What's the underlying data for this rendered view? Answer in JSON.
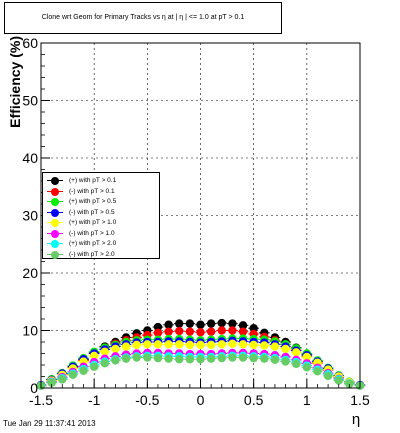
{
  "title": "Clone wrt Geom for Primary Tracks vs    η at |  η | <= 1.0 at pT > 0.1",
  "timestamp": "Tue Jan 29 11:37:41 2013",
  "chart_data": {
    "type": "scatter",
    "xlabel": "η",
    "ylabel": "Efficiency (%)",
    "xlim": [
      -1.5,
      1.5
    ],
    "ylim": [
      0,
      60
    ],
    "grid": true,
    "legend_position": "left-middle",
    "x_ticks": [
      "-1.5",
      "-1",
      "-0.5",
      "0",
      "0.5",
      "1",
      "1.5"
    ],
    "y_ticks": [
      "0",
      "10",
      "20",
      "30",
      "40",
      "50",
      "60"
    ],
    "x": [
      -1.5,
      -1.4,
      -1.3,
      -1.2,
      -1.1,
      -1.0,
      -0.9,
      -0.8,
      -0.7,
      -0.6,
      -0.5,
      -0.4,
      -0.3,
      -0.2,
      -0.1,
      0.0,
      0.1,
      0.2,
      0.3,
      0.4,
      0.5,
      0.6,
      0.7,
      0.8,
      0.9,
      1.0,
      1.1,
      1.2,
      1.3,
      1.4,
      1.5
    ],
    "series": [
      {
        "name": "(+) with pT > 0.1",
        "color": "#000000",
        "values": [
          0.5,
          1.5,
          2.5,
          3.8,
          5.0,
          6.2,
          7.2,
          8.0,
          8.8,
          9.5,
          10.0,
          10.6,
          11.0,
          11.2,
          11.2,
          11.0,
          11.2,
          11.3,
          11.2,
          10.9,
          10.4,
          9.6,
          8.8,
          8.0,
          7.0,
          5.8,
          4.5,
          3.2,
          2.0,
          1.0,
          0.5
        ]
      },
      {
        "name": "(-) with pT > 0.1",
        "color": "#ff0000",
        "values": [
          0.5,
          1.4,
          2.4,
          3.6,
          4.8,
          6.0,
          7.0,
          7.7,
          8.3,
          8.8,
          9.2,
          9.6,
          9.8,
          9.9,
          9.8,
          9.7,
          9.8,
          10.0,
          10.0,
          9.8,
          9.4,
          8.9,
          8.3,
          7.6,
          6.6,
          5.5,
          4.3,
          3.1,
          1.9,
          1.0,
          0.5
        ]
      },
      {
        "name": "(+) with pT > 0.5",
        "color": "#00ee00",
        "values": [
          0.5,
          1.5,
          2.6,
          3.9,
          5.2,
          6.3,
          7.0,
          7.5,
          8.0,
          8.3,
          8.4,
          8.4,
          8.5,
          8.5,
          8.4,
          8.3,
          8.4,
          8.5,
          8.6,
          8.6,
          8.5,
          8.4,
          8.1,
          7.6,
          6.9,
          6.0,
          4.8,
          3.5,
          2.2,
          1.1,
          0.5
        ]
      },
      {
        "name": "(-) with pT > 0.5",
        "color": "#0000ff",
        "values": [
          0.5,
          1.4,
          2.5,
          3.7,
          5.0,
          6.0,
          6.7,
          7.2,
          7.6,
          7.9,
          8.0,
          8.0,
          8.1,
          8.1,
          8.0,
          7.9,
          8.0,
          8.1,
          8.2,
          8.1,
          8.0,
          7.9,
          7.6,
          7.2,
          6.5,
          5.7,
          4.6,
          3.4,
          2.1,
          1.0,
          0.5
        ]
      },
      {
        "name": "(+) with pT > 1.0",
        "color": "#ffff00",
        "values": [
          0.4,
          1.3,
          2.3,
          3.4,
          4.6,
          5.6,
          6.3,
          6.8,
          7.2,
          7.5,
          7.6,
          7.6,
          7.6,
          7.6,
          7.5,
          7.5,
          7.5,
          7.6,
          7.7,
          7.6,
          7.5,
          7.4,
          7.2,
          6.8,
          6.2,
          5.4,
          4.4,
          3.2,
          2.0,
          1.0,
          0.4
        ]
      },
      {
        "name": "(-) with pT > 1.0",
        "color": "#ff00ff",
        "values": [
          0.4,
          1.1,
          1.9,
          2.8,
          3.7,
          4.5,
          5.1,
          5.5,
          5.8,
          6.0,
          6.1,
          6.1,
          6.0,
          6.0,
          5.9,
          5.9,
          5.9,
          6.0,
          6.1,
          6.1,
          6.0,
          5.9,
          5.7,
          5.4,
          4.9,
          4.3,
          3.5,
          2.6,
          1.6,
          0.8,
          0.4
        ]
      },
      {
        "name": "(+) with pT > 2.0",
        "color": "#00ffff",
        "values": [
          0.4,
          1.0,
          1.7,
          2.5,
          3.3,
          4.0,
          4.6,
          5.0,
          5.3,
          5.5,
          5.6,
          5.6,
          5.5,
          5.5,
          5.4,
          5.4,
          5.4,
          5.5,
          5.6,
          5.6,
          5.5,
          5.4,
          5.2,
          4.9,
          4.5,
          3.9,
          3.2,
          2.4,
          1.5,
          0.8,
          0.4
        ]
      },
      {
        "name": "(-) with pT > 2.0",
        "color": "#66cc66",
        "values": [
          0.4,
          0.9,
          1.5,
          2.3,
          3.0,
          3.7,
          4.3,
          4.8,
          5.1,
          5.3,
          5.3,
          5.2,
          5.1,
          5.0,
          5.0,
          5.0,
          5.1,
          5.2,
          5.3,
          5.3,
          5.2,
          5.1,
          4.9,
          4.6,
          4.2,
          3.6,
          2.9,
          2.1,
          1.3,
          0.7,
          0.4
        ]
      }
    ]
  }
}
